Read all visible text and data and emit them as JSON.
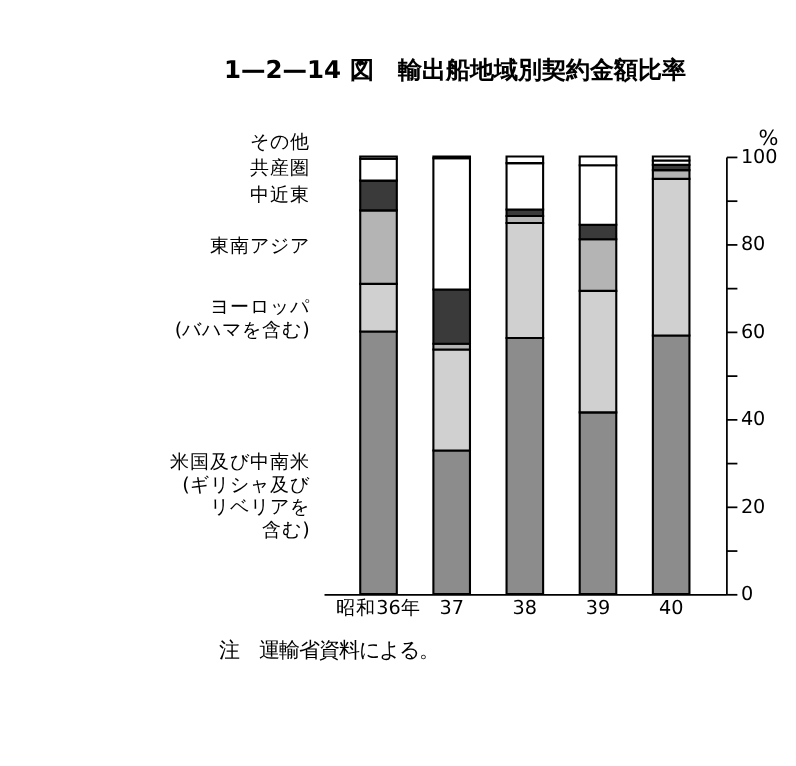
{
  "chart_data": {
    "type": "bar",
    "stacked": true,
    "title": "1—2—14 図　輸出船地域別契約金額比率",
    "ylabel": "%",
    "categories": [
      "昭和36年",
      "37",
      "38",
      "39",
      "40"
    ],
    "series": [
      {
        "name": "米国及び中南米(ギリシャ及びリベリアを含む)",
        "color": "#8c8c8c",
        "values": [
          60,
          32.8,
          58.5,
          41.5,
          59.1
        ]
      },
      {
        "name": "ヨーロッパ(バハマを含む)",
        "color": "#d0d0d0",
        "values": [
          10.9,
          23.1,
          26.3,
          27.8,
          35.8
        ]
      },
      {
        "name": "東南アジア",
        "color": "#b4b4b4",
        "values": [
          16.8,
          1.3,
          1.6,
          11.8,
          2.0
        ]
      },
      {
        "name": "中近東",
        "color": "#3a3a3a",
        "values": [
          6.8,
          12.4,
          1.5,
          3.3,
          1.2
        ]
      },
      {
        "name": "共産圏",
        "color": "#ffffff",
        "values": [
          5.0,
          30.0,
          10.6,
          13.6,
          1.0
        ]
      },
      {
        "name": "その他",
        "color": "#ffffff",
        "values": [
          0.5,
          0.4,
          1.5,
          2.0,
          0.9
        ]
      }
    ],
    "ylim": [
      0,
      100
    ],
    "yticks": [
      0,
      {
        "value": 10,
        "label": null
      },
      20,
      {
        "value": 30,
        "label": null
      },
      40,
      {
        "value": 50,
        "label": null
      },
      60,
      {
        "value": 70,
        "label": null
      },
      80,
      {
        "value": 90,
        "label": null
      },
      100
    ],
    "grid": false,
    "legend": "left",
    "annotations": [
      "注　運輸省資料による。"
    ]
  }
}
